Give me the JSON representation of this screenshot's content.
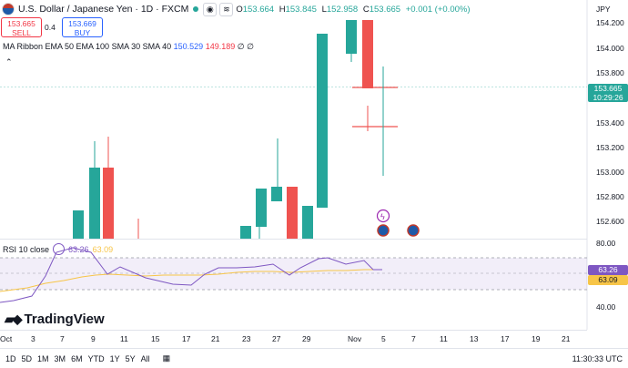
{
  "header": {
    "symbol": "U.S. Dollar / Japanese Yen · 1D · FXCM",
    "ohlc": [
      {
        "k": "O",
        "v": "153.664"
      },
      {
        "k": "H",
        "v": "153.845"
      },
      {
        "k": "L",
        "v": "152.958"
      },
      {
        "k": "C",
        "v": "153.665"
      },
      {
        "k": "",
        "v": "+0.001 (+0.00%)"
      }
    ]
  },
  "trade": {
    "sell_price": "153.665",
    "sell_label": "SELL",
    "spread": "0.4",
    "buy_price": "153.669",
    "buy_label": "BUY"
  },
  "indicator": {
    "name": "MA Ribbon EMA 50 EMA 100 SMA 30 SMA 40",
    "v1": "150.529",
    "v2": "149.189",
    "v3": "∅",
    "v4": "∅"
  },
  "rsi": {
    "name": "RSI 10 close",
    "v1": "63.26",
    "v2": "63.09"
  },
  "price_axis": {
    "currency": "JPY",
    "ticks": [
      "154.200",
      "154.000",
      "153.800",
      "153.600",
      "153.400",
      "153.200",
      "153.000",
      "152.800",
      "152.600"
    ],
    "current_price": "153.665",
    "countdown": "10:29:26"
  },
  "rsi_axis": {
    "ticks": [
      "80.00",
      "40.00"
    ],
    "rsi_value": "63.26",
    "rsi_ma": "63.09"
  },
  "time_axis": {
    "ticks": [
      "Oct",
      "3",
      "7",
      "9",
      "11",
      "15",
      "17",
      "21",
      "23",
      "27",
      "29",
      "Nov",
      "5",
      "7",
      "11",
      "13",
      "17",
      "19",
      "21"
    ]
  },
  "logo": "TradingView",
  "bottom": {
    "ranges": [
      "1D",
      "5D",
      "1M",
      "3M",
      "6M",
      "YTD",
      "1Y",
      "5Y",
      "All"
    ],
    "clock": "11:30:33 UTC"
  },
  "colors": {
    "up": "#26a69a",
    "down": "#ef5350",
    "rsi": "#7e57c2",
    "rsi_ma": "#f7c548",
    "accent": "#2962ff"
  }
}
